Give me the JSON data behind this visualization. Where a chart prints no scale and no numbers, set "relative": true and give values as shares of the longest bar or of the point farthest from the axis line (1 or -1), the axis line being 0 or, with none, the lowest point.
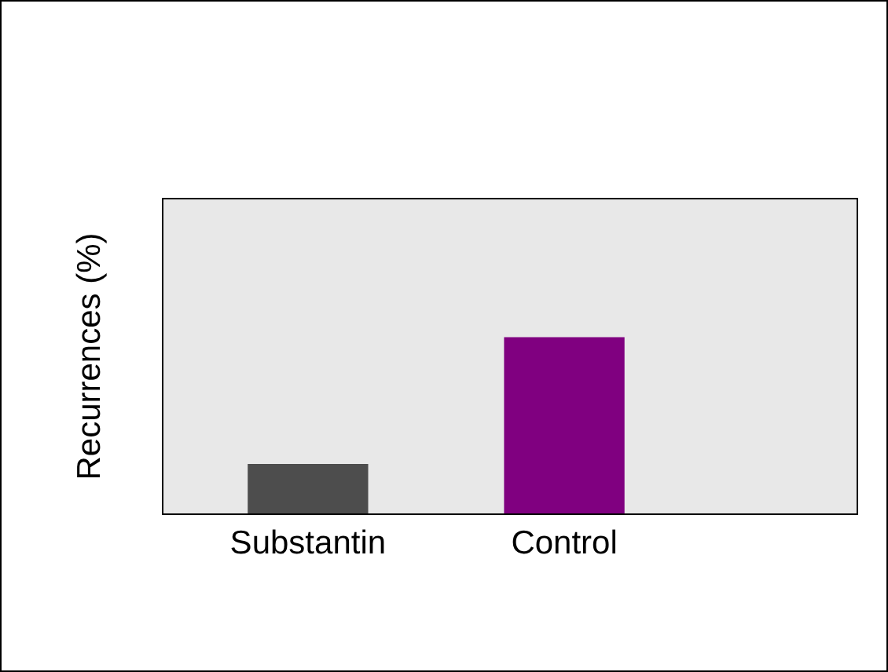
{
  "chart_data": {
    "type": "bar",
    "ylabel": "Recurrences (%)",
    "relative": true,
    "categories": [
      "Substantin",
      "Control"
    ],
    "values": [
      0.28,
      1
    ],
    "colors": [
      "#4d4d4d",
      "#800080"
    ]
  }
}
